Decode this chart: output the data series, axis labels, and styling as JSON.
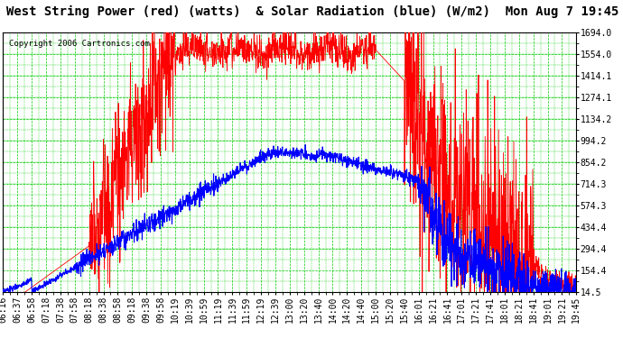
{
  "title": "West String Power (red) (watts)  & Solar Radiation (blue) (W/m2)  Mon Aug 7 19:45",
  "copyright": "Copyright 2006 Cartronics.com",
  "background_color": "#ffffff",
  "plot_bg_color": "#ffffff",
  "grid_color": "#00cc00",
  "yticks": [
    14.5,
    154.4,
    294.4,
    434.4,
    574.3,
    714.3,
    854.2,
    994.2,
    1134.2,
    1274.1,
    1414.1,
    1554.0,
    1694.0
  ],
  "ymin": 14.5,
  "ymax": 1694.0,
  "x_labels": [
    "06:16",
    "06:37",
    "06:58",
    "07:18",
    "07:38",
    "07:58",
    "08:18",
    "08:38",
    "08:58",
    "09:18",
    "09:38",
    "09:58",
    "10:19",
    "10:39",
    "10:59",
    "11:19",
    "11:39",
    "11:59",
    "12:19",
    "12:39",
    "13:00",
    "13:20",
    "13:40",
    "14:00",
    "14:20",
    "14:40",
    "15:00",
    "15:20",
    "15:40",
    "16:01",
    "16:21",
    "16:41",
    "17:01",
    "17:21",
    "17:41",
    "18:01",
    "18:21",
    "18:41",
    "19:01",
    "19:21",
    "19:45"
  ],
  "line_color_red": "#ff0000",
  "line_color_blue": "#0000ff",
  "title_fontsize": 10,
  "tick_fontsize": 7,
  "copyright_fontsize": 6.5
}
